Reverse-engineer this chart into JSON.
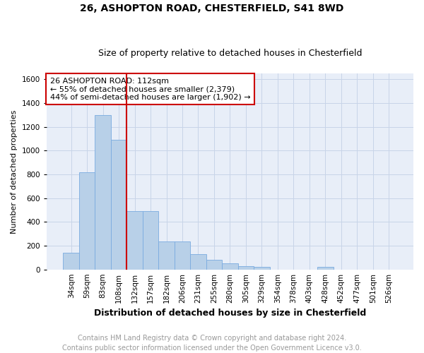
{
  "title1": "26, ASHOPTON ROAD, CHESTERFIELD, S41 8WD",
  "title2": "Size of property relative to detached houses in Chesterfield",
  "xlabel": "Distribution of detached houses by size in Chesterfield",
  "ylabel": "Number of detached properties",
  "footer1": "Contains HM Land Registry data © Crown copyright and database right 2024.",
  "footer2": "Contains public sector information licensed under the Open Government Licence v3.0.",
  "categories": [
    "34sqm",
    "59sqm",
    "83sqm",
    "108sqm",
    "132sqm",
    "157sqm",
    "182sqm",
    "206sqm",
    "231sqm",
    "255sqm",
    "280sqm",
    "305sqm",
    "329sqm",
    "354sqm",
    "378sqm",
    "403sqm",
    "428sqm",
    "452sqm",
    "477sqm",
    "501sqm",
    "526sqm"
  ],
  "values": [
    140,
    820,
    1300,
    1090,
    490,
    490,
    235,
    235,
    130,
    80,
    50,
    30,
    20,
    0,
    0,
    0,
    20,
    0,
    0,
    0,
    0
  ],
  "bar_color": "#b8d0e8",
  "bar_edge_color": "#7aabe0",
  "bar_width": 1.0,
  "vline_x": 3.5,
  "vline_color": "#cc0000",
  "ylim": [
    0,
    1650
  ],
  "yticks": [
    0,
    200,
    400,
    600,
    800,
    1000,
    1200,
    1400,
    1600
  ],
  "grid_color": "#c8d4e8",
  "bg_color": "#e8eef8",
  "annotation_text": "26 ASHOPTON ROAD: 112sqm\n← 55% of detached houses are smaller (2,379)\n44% of semi-detached houses are larger (1,902) →",
  "annotation_box_color": "#cc0000",
  "title_fontsize": 10,
  "subtitle_fontsize": 9,
  "xlabel_fontsize": 9,
  "ylabel_fontsize": 8,
  "tick_fontsize": 7.5,
  "footer_fontsize": 7,
  "annotation_fontsize": 8
}
